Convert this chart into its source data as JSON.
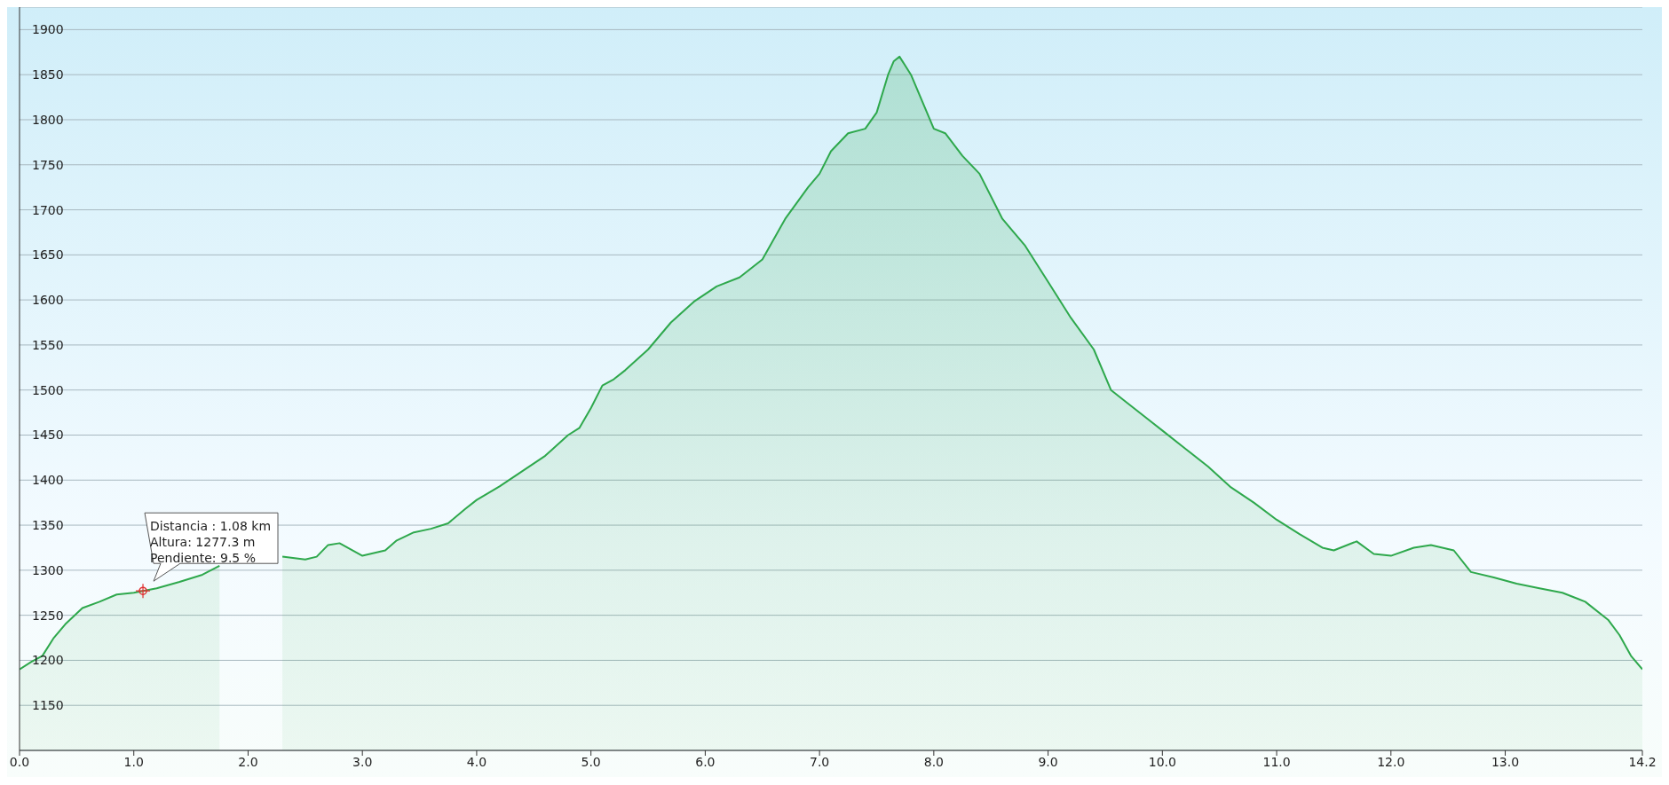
{
  "chart_data": {
    "type": "area",
    "x": [
      0,
      0.1,
      0.2,
      0.3,
      0.4,
      0.55,
      0.7,
      0.85,
      1.0,
      1.08,
      1.2,
      1.4,
      1.6,
      1.75,
      1.9,
      2.1,
      2.3,
      2.5,
      2.6,
      2.7,
      2.8,
      3.0,
      3.2,
      3.3,
      3.45,
      3.6,
      3.75,
      3.9,
      4.0,
      4.2,
      4.4,
      4.6,
      4.8,
      4.9,
      5.0,
      5.1,
      5.2,
      5.3,
      5.5,
      5.7,
      5.9,
      6.1,
      6.3,
      6.5,
      6.7,
      6.9,
      7.0,
      7.1,
      7.25,
      7.4,
      7.5,
      7.6,
      7.65,
      7.7,
      7.8,
      7.9,
      8.0,
      8.1,
      8.25,
      8.4,
      8.6,
      8.8,
      9.0,
      9.2,
      9.4,
      9.55,
      9.7,
      9.9,
      10.0,
      10.2,
      10.4,
      10.6,
      10.8,
      11.0,
      11.2,
      11.4,
      11.5,
      11.7,
      11.85,
      12.0,
      12.2,
      12.35,
      12.55,
      12.7,
      12.9,
      13.1,
      13.3,
      13.5,
      13.7,
      13.9,
      14.0,
      14.1,
      14.2
    ],
    "series": [
      {
        "color": "#2ea84c",
        "values": [
          1190,
          1198,
          1205,
          1225,
          1240,
          1258,
          1265,
          1273,
          1275,
          1277,
          1280,
          1287,
          1295,
          1305,
          null,
          null,
          1315,
          1312,
          1315,
          1328,
          1330,
          1316,
          1322,
          1333,
          1342,
          1346,
          1352,
          1368,
          1378,
          1393,
          1410,
          1427,
          1450,
          1458,
          1480,
          1505,
          1512,
          1522,
          1545,
          1575,
          1598,
          1615,
          1625,
          1645,
          1690,
          1725,
          1740,
          1765,
          1785,
          1790,
          1808,
          1850,
          1865,
          1870,
          1850,
          1820,
          1790,
          1785,
          1760,
          1740,
          1690,
          1660,
          1620,
          1580,
          1545,
          1500,
          1485,
          1465,
          1455,
          1435,
          1415,
          1392,
          1375,
          1356,
          1340,
          1325,
          1322,
          1332,
          1318,
          1316,
          1325,
          1328,
          1322,
          1298,
          1292,
          1285,
          1280,
          1275,
          1265,
          1245,
          1228,
          1205,
          1190
        ]
      }
    ],
    "xlim": [
      0,
      14.2
    ],
    "xticks": [
      {
        "value": 0,
        "label": "0.0"
      },
      {
        "value": 1,
        "label": "1.0"
      },
      {
        "value": 2,
        "label": "2.0"
      },
      {
        "value": 3,
        "label": "3.0"
      },
      {
        "value": 4,
        "label": "4.0"
      },
      {
        "value": 5,
        "label": "5.0"
      },
      {
        "value": 6,
        "label": "6.0"
      },
      {
        "value": 7,
        "label": "7.0"
      },
      {
        "value": 8,
        "label": "8.0"
      },
      {
        "value": 9,
        "label": "9.0"
      },
      {
        "value": 10,
        "label": "10.0"
      },
      {
        "value": 11,
        "label": "11.0"
      },
      {
        "value": 12,
        "label": "12.0"
      },
      {
        "value": 13,
        "label": "13.0"
      },
      {
        "value": 14.2,
        "label": "14.2"
      }
    ],
    "ylim": [
      1100,
      1925
    ],
    "yticks": [
      1150,
      1200,
      1250,
      1300,
      1350,
      1400,
      1450,
      1500,
      1550,
      1600,
      1650,
      1700,
      1750,
      1800,
      1850,
      1900
    ],
    "grid": "y",
    "annotations": [
      {
        "text": "Distancia : 1.08 km\nAltura: 1277.3 m\nPendiente: 9.5 %",
        "x": 1.08,
        "y": 1277
      }
    ]
  }
}
